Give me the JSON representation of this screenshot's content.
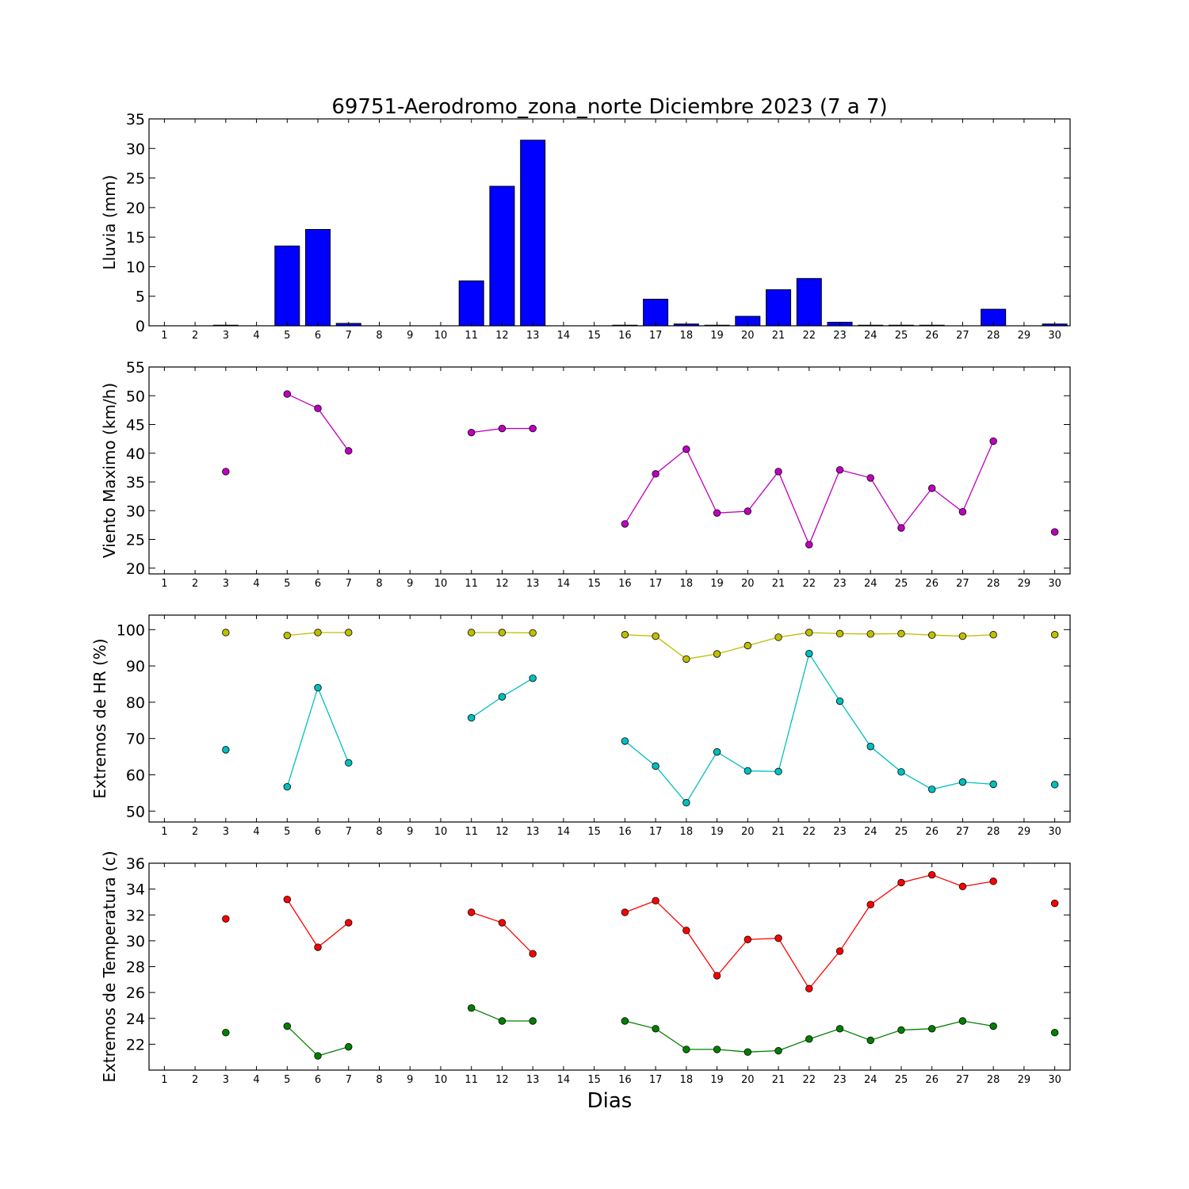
{
  "title": "69751-Aerodromo_zona_norte Diciembre 2023  (7 a 7)",
  "xlabel": "Dias",
  "chart_data": [
    {
      "type": "bar",
      "ylabel": "Lluvia (mm)",
      "ylim": [
        0,
        35
      ],
      "yticks": [
        0,
        5,
        10,
        15,
        20,
        25,
        30,
        35
      ],
      "x": [
        1,
        2,
        3,
        4,
        5,
        6,
        7,
        8,
        9,
        10,
        11,
        12,
        13,
        14,
        15,
        16,
        17,
        18,
        19,
        20,
        21,
        22,
        23,
        24,
        25,
        26,
        27,
        28,
        29,
        30
      ],
      "xlim": [
        0.5,
        30.5
      ],
      "colors": {
        "bar": "#0000ff"
      },
      "values": [
        0,
        0,
        0.1,
        0,
        13.5,
        16.3,
        0.4,
        0,
        0,
        0,
        7.6,
        23.6,
        31.4,
        0,
        0,
        0.1,
        4.5,
        0.3,
        0.1,
        1.6,
        6.1,
        8.0,
        0.6,
        0.1,
        0.1,
        0.1,
        0,
        2.8,
        0,
        0.3
      ]
    },
    {
      "type": "line",
      "ylabel": "Viento Maximo (km/h)",
      "ylim": [
        19,
        55
      ],
      "yticks": [
        20,
        25,
        30,
        35,
        40,
        45,
        50,
        55
      ],
      "x": [
        1,
        2,
        3,
        4,
        5,
        6,
        7,
        8,
        9,
        10,
        11,
        12,
        13,
        14,
        15,
        16,
        17,
        18,
        19,
        20,
        21,
        22,
        23,
        24,
        25,
        26,
        27,
        28,
        29,
        30
      ],
      "xlim": [
        0.5,
        30.5
      ],
      "series": [
        {
          "color": "#bf00bf",
          "values": [
            null,
            null,
            36.8,
            null,
            50.3,
            47.8,
            40.4,
            null,
            null,
            null,
            43.6,
            44.3,
            44.3,
            null,
            null,
            27.7,
            36.4,
            40.7,
            29.6,
            29.9,
            36.8,
            24.1,
            37.1,
            35.7,
            27.0,
            33.9,
            29.8,
            42.1,
            null,
            26.3
          ]
        }
      ]
    },
    {
      "type": "line",
      "ylabel": "Extremos de HR (%)",
      "ylim": [
        47,
        104
      ],
      "yticks": [
        50,
        60,
        70,
        80,
        90,
        100
      ],
      "x": [
        1,
        2,
        3,
        4,
        5,
        6,
        7,
        8,
        9,
        10,
        11,
        12,
        13,
        14,
        15,
        16,
        17,
        18,
        19,
        20,
        21,
        22,
        23,
        24,
        25,
        26,
        27,
        28,
        29,
        30
      ],
      "xlim": [
        0.5,
        30.5
      ],
      "series": [
        {
          "color": "#bfbf00",
          "values": [
            null,
            null,
            99.2,
            null,
            98.4,
            99.2,
            99.2,
            null,
            null,
            null,
            99.2,
            99.2,
            99.1,
            null,
            null,
            98.6,
            98.2,
            91.9,
            93.3,
            95.6,
            97.9,
            99.2,
            98.9,
            98.8,
            98.9,
            98.5,
            98.2,
            98.6,
            null,
            98.6
          ]
        },
        {
          "color": "#00bfbf",
          "values": [
            null,
            null,
            66.9,
            null,
            56.7,
            84.0,
            63.3,
            null,
            null,
            null,
            75.7,
            81.5,
            86.6,
            null,
            null,
            69.3,
            62.4,
            52.3,
            66.3,
            61.1,
            60.9,
            93.4,
            80.3,
            67.8,
            60.8,
            56.0,
            58.0,
            57.4,
            null,
            57.3
          ]
        }
      ]
    },
    {
      "type": "line",
      "ylabel": "Extremos de Temperatura (c)",
      "ylim": [
        20,
        36
      ],
      "yticks": [
        22,
        24,
        26,
        28,
        30,
        32,
        34,
        36
      ],
      "x": [
        1,
        2,
        3,
        4,
        5,
        6,
        7,
        8,
        9,
        10,
        11,
        12,
        13,
        14,
        15,
        16,
        17,
        18,
        19,
        20,
        21,
        22,
        23,
        24,
        25,
        26,
        27,
        28,
        29,
        30
      ],
      "xlim": [
        0.5,
        30.5
      ],
      "series": [
        {
          "color": "#ff0000",
          "values": [
            null,
            null,
            31.7,
            null,
            33.2,
            29.5,
            31.4,
            null,
            null,
            null,
            32.2,
            31.4,
            29.0,
            null,
            null,
            32.2,
            33.1,
            30.8,
            27.3,
            30.1,
            30.2,
            26.3,
            29.2,
            32.8,
            34.5,
            35.1,
            34.2,
            34.6,
            null,
            32.9
          ]
        },
        {
          "color": "#008000",
          "values": [
            null,
            null,
            22.9,
            null,
            23.4,
            21.1,
            21.8,
            null,
            null,
            null,
            24.8,
            23.8,
            23.8,
            null,
            null,
            23.8,
            23.2,
            21.6,
            21.6,
            21.4,
            21.5,
            22.4,
            23.2,
            22.3,
            23.1,
            23.2,
            23.8,
            23.4,
            null,
            22.9
          ]
        }
      ]
    }
  ]
}
